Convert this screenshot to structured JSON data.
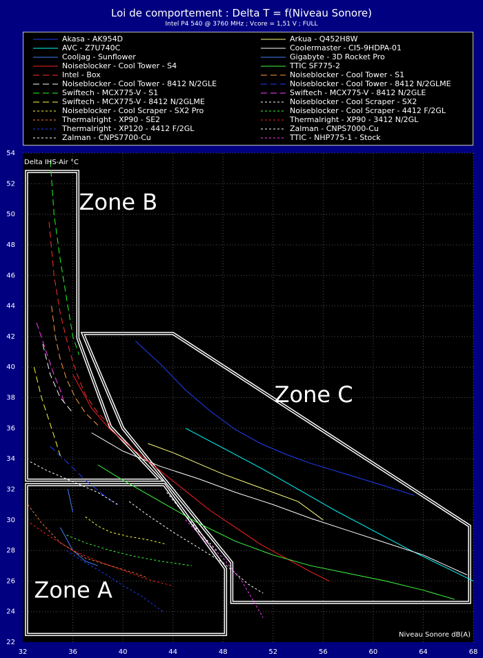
{
  "chart_data": {
    "type": "line",
    "title": "Loi de comportement : Delta T = f(Niveau Sonore)",
    "subtitle": "Intel P4 540 @ 3760 MHz ; Vcore = 1,51 V ; FULL",
    "xlabel": "Niveau Sonore dB(A)",
    "ylabel": "Delta IHS-Air °C",
    "xlim": [
      32,
      68
    ],
    "ylim": [
      22,
      54
    ],
    "xticks": [
      32,
      36,
      40,
      44,
      48,
      52,
      56,
      60,
      64,
      68
    ],
    "yticks": [
      22,
      24,
      26,
      28,
      30,
      32,
      34,
      36,
      38,
      40,
      42,
      44,
      46,
      48,
      50,
      52,
      54
    ],
    "grid": true,
    "legend_position": "top",
    "zones": [
      {
        "label": "Zone A",
        "polygon": [
          [
            32.3,
            22.5
          ],
          [
            48.2,
            22.5
          ],
          [
            48.2,
            26.8
          ],
          [
            43.3,
            32.3
          ],
          [
            32.3,
            32.3
          ]
        ]
      },
      {
        "label": "Zone B",
        "polygon": [
          [
            32.3,
            32.6
          ],
          [
            43.0,
            32.6
          ],
          [
            39.0,
            36.1
          ],
          [
            36.4,
            41.9
          ],
          [
            36.4,
            52.8
          ],
          [
            32.3,
            52.8
          ]
        ]
      },
      {
        "label": "Zone C",
        "polygon": [
          [
            36.8,
            42.2
          ],
          [
            44.0,
            42.2
          ],
          [
            67.7,
            29.6
          ],
          [
            67.7,
            24.6
          ],
          [
            48.7,
            24.6
          ],
          [
            48.7,
            27.2
          ],
          [
            40.0,
            36.0
          ]
        ]
      }
    ],
    "series": [
      {
        "name": "Akasa - AK954D",
        "color": "#2040ff",
        "dash": "solid",
        "x": [
          41.0,
          43.0,
          45.0,
          47.0,
          49.0,
          51.0,
          53.0,
          55.0,
          57.0,
          59.0,
          61.0,
          63.3
        ],
        "y": [
          41.7,
          40.2,
          38.5,
          37.1,
          35.9,
          35.0,
          34.3,
          33.7,
          33.2,
          32.7,
          32.2,
          31.6
        ]
      },
      {
        "name": "Arkua - Q452H8W",
        "color": "#ffff80",
        "dash": "solid",
        "x": [
          42.0,
          44.0,
          46.0,
          48.0,
          50.0,
          52.0,
          54.0,
          56.0
        ],
        "y": [
          35.0,
          34.4,
          33.7,
          33.0,
          32.4,
          31.8,
          31.2,
          30.0
        ]
      },
      {
        "name": "AVC - Z7U740C",
        "color": "#00ffff",
        "dash": "solid",
        "x": [
          45.0,
          48.0,
          51.0,
          54.0,
          57.0,
          60.0,
          63.0,
          66.0,
          68.0
        ],
        "y": [
          36.0,
          34.7,
          33.4,
          32.0,
          30.6,
          29.3,
          28.0,
          26.8,
          26.0
        ]
      },
      {
        "name": "Coolermaster - CI5-9HDPA-01",
        "color": "#ffffff",
        "dash": "solid",
        "x": [
          37.5,
          40.0,
          43.0,
          46.0,
          49.0,
          52.0,
          55.0,
          58.0,
          61.0,
          64.0,
          67.5
        ],
        "y": [
          35.7,
          34.5,
          33.5,
          32.7,
          31.8,
          31.0,
          30.1,
          29.3,
          28.5,
          27.7,
          26.4
        ]
      },
      {
        "name": "Cooljag - Sunflower",
        "color": "#4080ff",
        "dash": "solid",
        "x": [
          35.0,
          36.0,
          37.0,
          38.0
        ],
        "y": [
          29.5,
          28.0,
          27.3,
          27.0
        ]
      },
      {
        "name": "Gigabyte - 3D Rocket Pro",
        "color": "#4080ff",
        "dash": "solid",
        "x": [
          35.6,
          36.0
        ],
        "y": [
          32.0,
          30.5
        ]
      },
      {
        "name": "Noiseblocker - Cool Tower - S4",
        "color": "#ff2020",
        "dash": "solid",
        "x": [
          36.0,
          37.5,
          39.0,
          41.0,
          43.0,
          45.0,
          47.0,
          49.0,
          51.0,
          53.0,
          55.0,
          56.5
        ],
        "y": [
          39.5,
          37.3,
          35.9,
          34.5,
          33.2,
          31.9,
          30.6,
          29.5,
          28.4,
          27.5,
          26.6,
          26.0
        ]
      },
      {
        "name": "TTIC SF775-2",
        "color": "#40ff40",
        "dash": "solid",
        "x": [
          38.0,
          40.0,
          43.0,
          46.0,
          49.0,
          52.0,
          55.0,
          58.0,
          61.0,
          64.0,
          66.5
        ],
        "y": [
          33.6,
          32.6,
          31.2,
          29.8,
          28.6,
          27.7,
          27.0,
          26.5,
          26.0,
          25.4,
          24.8
        ]
      },
      {
        "name": "Intel - Box",
        "color": "#ff3030",
        "dash": "long",
        "x": [
          34.1,
          34.5,
          35.0,
          35.5,
          36.0,
          36.5,
          37.0,
          38.0,
          39.0
        ],
        "y": [
          49.5,
          46.0,
          43.5,
          41.8,
          40.3,
          39.2,
          38.2,
          37.0,
          36.2
        ]
      },
      {
        "name": "Noiseblocker - Cool Tower - S1",
        "color": "#ffa040",
        "dash": "long",
        "x": [
          34.3,
          34.6,
          35.0,
          35.5,
          36.2,
          37.0,
          38.0
        ],
        "y": [
          44.0,
          42.0,
          40.5,
          39.2,
          38.0,
          37.0,
          36.2
        ]
      },
      {
        "name": "Noiseblocker - Cool Tower - 8412 N/2GLE",
        "color": "#ffffff",
        "dash": "long",
        "x": [
          33.6,
          34.2,
          35.0,
          36.0
        ],
        "y": [
          41.5,
          39.5,
          38.0,
          37.0
        ]
      },
      {
        "name": "Noiseblocker - Cool Tower - 8412 N/2GLME",
        "color": "#2040ff",
        "dash": "long",
        "x": [
          34.2,
          35.0,
          36.0,
          37.0,
          38.5,
          39.5
        ],
        "y": [
          34.8,
          34.2,
          33.4,
          32.6,
          31.6,
          31.0
        ]
      },
      {
        "name": "Swiftech - MCX775-V - S1",
        "color": "#20ff20",
        "dash": "long",
        "x": [
          34.2,
          34.5,
          35.0,
          35.5,
          36.0,
          36.5
        ],
        "y": [
          53.5,
          50.0,
          47.0,
          44.5,
          42.0,
          40.8
        ]
      },
      {
        "name": "Swiftech - MCX775-V - 8412 N/2GLE",
        "color": "#ff40ff",
        "dash": "long",
        "x": [
          33.1,
          33.8,
          34.5,
          35.0,
          35.3
        ],
        "y": [
          42.9,
          41.2,
          39.5,
          38.5,
          37.7
        ]
      },
      {
        "name": "Swiftech - MCX775-V - 8412 N/2GLME",
        "color": "#ffff40",
        "dash": "long",
        "x": [
          32.9,
          33.5,
          34.3,
          35.0
        ],
        "y": [
          40.0,
          38.0,
          36.0,
          34.2
        ]
      },
      {
        "name": "Noiseblocker - Cool Scraper - SX2",
        "color": "#ffffff",
        "dash": "short",
        "x": [
          32.6,
          34.0,
          36.0,
          38.0,
          39.6
        ],
        "y": [
          33.8,
          33.2,
          32.5,
          31.8,
          31.0
        ]
      },
      {
        "name": "Noiseblocker - Cool Scraper - SX2 Pro",
        "color": "#ffff40",
        "dash": "short",
        "x": [
          37.0,
          38.0,
          39.0,
          40.5,
          42.0,
          43.5
        ],
        "y": [
          30.2,
          29.6,
          29.2,
          28.9,
          28.7,
          28.4
        ]
      },
      {
        "name": "Noiseblocker - Cool Scraper - 4412 F/2GL",
        "color": "#40ff40",
        "dash": "short",
        "x": [
          35.5,
          37.0,
          39.0,
          41.0,
          43.0,
          45.5
        ],
        "y": [
          29.0,
          28.5,
          28.0,
          27.6,
          27.3,
          27.0
        ]
      },
      {
        "name": "Thermalright - XP90 - SE2",
        "color": "#ff8040",
        "dash": "short",
        "x": [
          32.4,
          33.5,
          35.0,
          37.0,
          39.0,
          41.0,
          42.0
        ],
        "y": [
          31.0,
          29.8,
          28.5,
          27.5,
          27.0,
          26.5,
          26.2
        ]
      },
      {
        "name": "Thermalright - XP90 - 3412 N/2GL",
        "color": "#ff2020",
        "dash": "short",
        "x": [
          32.6,
          34.0,
          36.0,
          38.0,
          40.0,
          42.0,
          43.9
        ],
        "y": [
          29.8,
          29.0,
          28.0,
          27.3,
          26.7,
          26.1,
          25.7
        ]
      },
      {
        "name": "Thermalright - XP120 - 4412 F/2GL",
        "color": "#2040ff",
        "dash": "short",
        "x": [
          35.5,
          37.0,
          38.5,
          40.0,
          41.5,
          43.2
        ],
        "y": [
          28.0,
          27.2,
          26.5,
          25.7,
          25.0,
          24.0
        ]
      },
      {
        "name": "Zalman - CNPS7000-Cu",
        "color": "#ffffff",
        "dash": "short",
        "x": [
          40.5,
          42.0,
          44.0,
          46.0,
          48.0,
          50.0,
          51.2
        ],
        "y": [
          31.2,
          30.3,
          29.2,
          28.2,
          27.2,
          25.8,
          25.2
        ]
      },
      {
        "name": "Zalman - CNPS7700-Cu",
        "color": "#ffffff",
        "dash": "short",
        "x": [
          43.5,
          44.5,
          46.0,
          47.5
        ],
        "y": [
          31.8,
          30.8,
          29.3,
          28.0
        ]
      },
      {
        "name": "TTIC - NHP775-1 - Stock",
        "color": "#ff40ff",
        "dash": "short",
        "x": [
          45.0,
          46.5,
          48.0,
          49.5,
          51.2
        ],
        "y": [
          30.0,
          28.7,
          27.5,
          26.0,
          23.6
        ]
      }
    ]
  }
}
